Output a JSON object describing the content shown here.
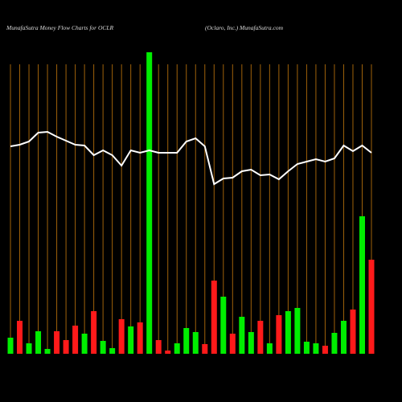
{
  "chart_data": {
    "type": "money-flow",
    "title": "MunafaSutra  Money Flow  Charts for OCLR",
    "subtitle": "(Oclaro,  Inc.) MunafaSutra.com",
    "categories": [
      null,
      null,
      null,
      null,
      null,
      null,
      null,
      null,
      null,
      null,
      null,
      null,
      null,
      null,
      null,
      null,
      null,
      null,
      null,
      null,
      null,
      null,
      null,
      null,
      null,
      null,
      null,
      null,
      null,
      null,
      null,
      null,
      null,
      null,
      null,
      null,
      null,
      null,
      null,
      null
    ],
    "ylim": [
      0,
      380
    ],
    "bar_colors": {
      "up": "#00ee00",
      "down": "#ff1a1a"
    },
    "grid_color": "#a0620a",
    "line_color": "#ffffff",
    "series": [
      {
        "kind": "bar",
        "values": [
          20,
          41,
          13,
          28,
          6,
          28,
          17,
          35,
          25,
          53,
          16,
          7,
          43,
          34,
          39,
          375,
          17,
          4,
          13,
          32,
          27,
          12,
          91,
          71,
          25,
          46,
          27,
          41,
          13,
          48,
          53,
          57,
          15,
          13,
          10,
          26,
          41,
          55,
          171,
          117
        ],
        "directions": [
          "up",
          "down",
          "up",
          "up",
          "up",
          "down",
          "down",
          "down",
          "up",
          "down",
          "up",
          "up",
          "down",
          "up",
          "down",
          "up",
          "down",
          "down",
          "up",
          "up",
          "up",
          "down",
          "down",
          "up",
          "down",
          "up",
          "up",
          "down",
          "up",
          "down",
          "up",
          "up",
          "up",
          "up",
          "down",
          "up",
          "up",
          "down",
          "up",
          "down"
        ]
      },
      {
        "kind": "line",
        "values": [
          258,
          260,
          264,
          275,
          276,
          270,
          265,
          260,
          259,
          247,
          253,
          247,
          234,
          253,
          250,
          253,
          250,
          250,
          250,
          264,
          268,
          258,
          211,
          218,
          219,
          227,
          229,
          222,
          223,
          217,
          227,
          236,
          239,
          242,
          239,
          243,
          259,
          252,
          259,
          250
        ]
      }
    ]
  }
}
